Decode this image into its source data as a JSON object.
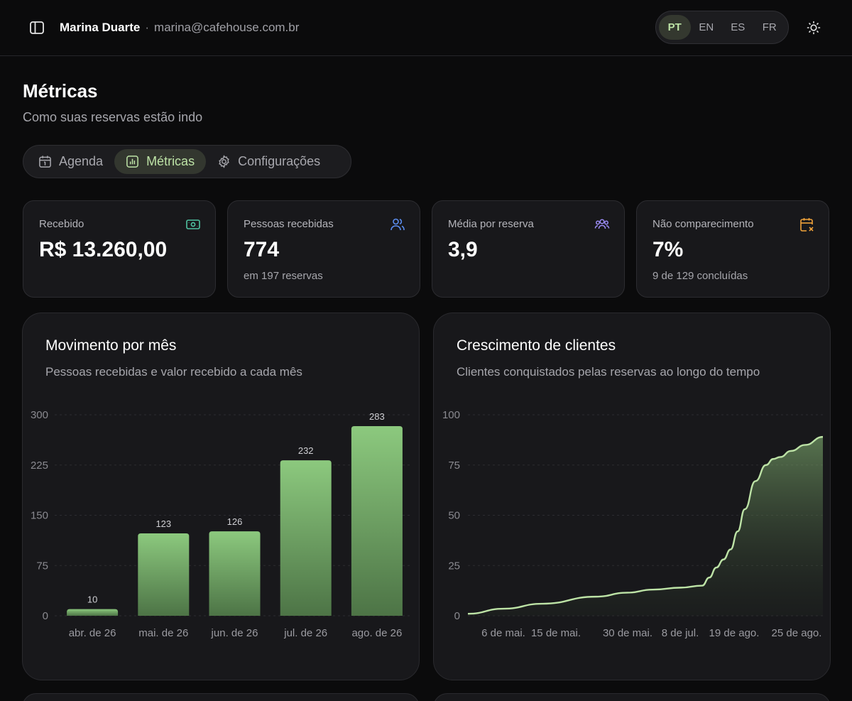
{
  "header": {
    "user_name": "Marina Duarte",
    "separator": "·",
    "user_email": "marina@cafehouse.com.br",
    "languages": [
      {
        "code": "PT",
        "active": true
      },
      {
        "code": "EN",
        "active": false
      },
      {
        "code": "ES",
        "active": false
      },
      {
        "code": "FR",
        "active": false
      }
    ]
  },
  "page": {
    "title": "Métricas",
    "subtitle": "Como suas reservas estão indo"
  },
  "tabs": [
    {
      "label": "Agenda",
      "icon": "calendar-icon",
      "active": false
    },
    {
      "label": "Métricas",
      "icon": "bar-chart-icon",
      "active": true
    },
    {
      "label": "Configurações",
      "icon": "gear-icon",
      "active": false
    }
  ],
  "kpis": [
    {
      "label": "Recebido",
      "value": "R$ 13.260,00",
      "sub": "",
      "icon": "cash-icon",
      "color": "#4fc3a1"
    },
    {
      "label": "Pessoas recebidas",
      "value": "774",
      "sub": "em 197 reservas",
      "icon": "users-icon",
      "color": "#5b8def"
    },
    {
      "label": "Média por reserva",
      "value": "3,9",
      "sub": "",
      "icon": "group-icon",
      "color": "#9b8cf5"
    },
    {
      "label": "Não comparecimento",
      "value": "7%",
      "sub": "9 de 129 concluídas",
      "icon": "calendar-x-icon",
      "color": "#f0a23a"
    }
  ],
  "colors": {
    "accent": "#bde3a6",
    "bar": "#86c47a"
  },
  "chart_data": [
    {
      "type": "bar",
      "title": "Movimento por mês",
      "subtitle": "Pessoas recebidas e valor recebido a cada mês",
      "categories": [
        "abr. de 26",
        "mai. de 26",
        "jun. de 26",
        "jul. de 26",
        "ago. de 26"
      ],
      "values": [
        10,
        123,
        126,
        232,
        283
      ],
      "value_labels": [
        "10",
        "123",
        "126",
        "232",
        "283"
      ],
      "yticks": [
        "0",
        "75",
        "150",
        "225",
        "300"
      ],
      "ylim": [
        0,
        300
      ],
      "grid": true
    },
    {
      "type": "area",
      "title": "Crescimento de clientes",
      "subtitle": "Clientes conquistados pelas reservas ao longo do tempo",
      "xticks": [
        "6 de mai.",
        "15 de mai.",
        "30 de mai.",
        "8 de jul.",
        "19 de ago.",
        "25 de ago."
      ],
      "x_index": [
        0,
        0.1,
        0.21,
        0.36,
        0.45,
        0.52,
        0.6,
        0.66,
        0.68,
        0.7,
        0.72,
        0.74,
        0.76,
        0.78,
        0.81,
        0.84,
        0.86,
        0.88,
        0.91,
        0.95,
        1.0
      ],
      "values": [
        1,
        3.5,
        6,
        9.5,
        11.5,
        13,
        14,
        15,
        19,
        24,
        28,
        33,
        42,
        53,
        67,
        75,
        78,
        79,
        82,
        85,
        89
      ],
      "yticks": [
        "0",
        "25",
        "50",
        "75",
        "100"
      ],
      "ylim": [
        0,
        100
      ],
      "grid": true
    }
  ]
}
